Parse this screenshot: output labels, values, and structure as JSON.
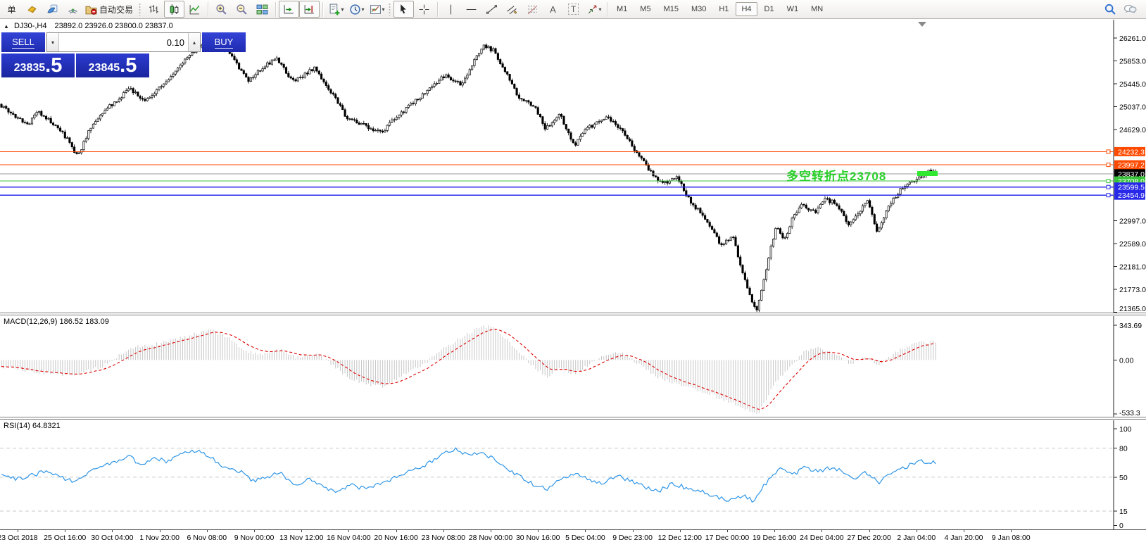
{
  "toolbar": {
    "new_order_label": "单",
    "autotrading_label": "自动交易",
    "letter_a": "A",
    "letter_t": "T",
    "timeframes": [
      "M1",
      "M5",
      "M15",
      "M30",
      "H1",
      "H4",
      "D1",
      "W1",
      "MN"
    ],
    "active_timeframe": "H4"
  },
  "icons": {
    "collapse": "▲",
    "spin_up": "▴",
    "spin_down": "▾",
    "caret": "▾"
  },
  "chart": {
    "header": {
      "symbol_period": "DJ30-,H4",
      "ohlc": "23892.0 23926.0 23800.0 23837.0"
    },
    "trade_panel": {
      "sell_label": "SELL",
      "buy_label": "BUY",
      "volume": "0.10",
      "sell_price": "23835",
      "sell_price_frac": ".5",
      "buy_price": "23845",
      "buy_price_frac": ".5"
    },
    "annotation": {
      "text": "多空转折点23708",
      "color": "#28cf28",
      "dash_color": "#30e830"
    },
    "levels": [
      {
        "price": 24232.3,
        "label": "24232.3",
        "color": "#ff4a00",
        "style": "solid"
      },
      {
        "price": 23997.2,
        "label": "23997.2",
        "color": "#ff4a00",
        "style": "solid"
      },
      {
        "price": 23837.0,
        "label": "23837.0",
        "color": "#000000",
        "style": "current"
      },
      {
        "price": 23708.0,
        "label": "23708.0",
        "color": "#38c438",
        "style": "solid"
      },
      {
        "price": 23599.5,
        "label": "23599.5",
        "color": "#2828e8",
        "style": "solid"
      },
      {
        "price": 23454.9,
        "label": "23454.9",
        "color": "#2828e8",
        "style": "solid"
      }
    ]
  },
  "macd": {
    "label": "MACD(12,26,9) 186.52 183.09",
    "tick_top": "343.69",
    "tick_zero": "0.00",
    "tick_bottom": "-533.3"
  },
  "rsi": {
    "label": "RSI(14) 64.8321",
    "ticks": [
      100,
      80,
      50,
      15,
      0
    ],
    "dashed_levels": [
      80,
      50,
      15
    ]
  },
  "chart_data": {
    "type": "candlestick",
    "symbol": "DJ30-",
    "timeframe": "H4",
    "title": "DJ30-,H4",
    "last_ohlc": {
      "open": 23892.0,
      "high": 23926.0,
      "low": 23800.0,
      "close": 23837.0
    },
    "ylim": [
      21330,
      26590
    ],
    "y_axis": {
      "visible_ticks": [
        26261.0,
        25853.0,
        25445.0,
        25037.0,
        24629.0,
        22997.0,
        22589.0,
        22181.0,
        21773.0,
        21365.0
      ],
      "tick_step": 408
    },
    "x_labels": [
      "23 Oct 2018",
      "25 Oct 16:00",
      "30 Oct 04:00",
      "1 Nov 20:00",
      "6 Nov 08:00",
      "9 Nov 00:00",
      "13 Nov 12:00",
      "16 Nov 04:00",
      "20 Nov 16:00",
      "23 Nov 08:00",
      "28 Nov 00:00",
      "30 Nov 16:00",
      "5 Dec 04:00",
      "9 Dec 23:00",
      "12 Dec 12:00",
      "17 Dec 00:00",
      "19 Dec 16:00",
      "24 Dec 04:00",
      "27 Dec 20:00",
      "2 Jan 04:00",
      "4 Jan 20:00",
      "9 Jan 08:00"
    ],
    "price_path": [
      [
        0,
        25080
      ],
      [
        0.015,
        24890
      ],
      [
        0.03,
        24700
      ],
      [
        0.042,
        24950
      ],
      [
        0.056,
        24760
      ],
      [
        0.071,
        24500
      ],
      [
        0.084,
        24130
      ],
      [
        0.097,
        24650
      ],
      [
        0.112,
        24950
      ],
      [
        0.139,
        25350
      ],
      [
        0.157,
        25130
      ],
      [
        0.187,
        25650
      ],
      [
        0.217,
        26180
      ],
      [
        0.232,
        26230
      ],
      [
        0.247,
        25980
      ],
      [
        0.266,
        25480
      ],
      [
        0.281,
        25740
      ],
      [
        0.296,
        25900
      ],
      [
        0.315,
        25470
      ],
      [
        0.337,
        25740
      ],
      [
        0.36,
        25150
      ],
      [
        0.371,
        24830
      ],
      [
        0.39,
        24700
      ],
      [
        0.408,
        24580
      ],
      [
        0.431,
        24950
      ],
      [
        0.453,
        25250
      ],
      [
        0.476,
        25600
      ],
      [
        0.494,
        25440
      ],
      [
        0.517,
        26130
      ],
      [
        0.528,
        26040
      ],
      [
        0.554,
        25230
      ],
      [
        0.573,
        25000
      ],
      [
        0.583,
        24640
      ],
      [
        0.599,
        24890
      ],
      [
        0.614,
        24340
      ],
      [
        0.628,
        24650
      ],
      [
        0.65,
        24840
      ],
      [
        0.663,
        24640
      ],
      [
        0.678,
        24290
      ],
      [
        0.693,
        23940
      ],
      [
        0.708,
        23640
      ],
      [
        0.723,
        23800
      ],
      [
        0.738,
        23340
      ],
      [
        0.749,
        23150
      ],
      [
        0.76,
        22840
      ],
      [
        0.772,
        22540
      ],
      [
        0.783,
        22760
      ],
      [
        0.794,
        22040
      ],
      [
        0.803,
        21580
      ],
      [
        0.809,
        21430
      ],
      [
        0.816,
        21900
      ],
      [
        0.824,
        22500
      ],
      [
        0.83,
        22890
      ],
      [
        0.838,
        22640
      ],
      [
        0.848,
        23090
      ],
      [
        0.858,
        23290
      ],
      [
        0.871,
        23140
      ],
      [
        0.882,
        23390
      ],
      [
        0.895,
        23290
      ],
      [
        0.906,
        22940
      ],
      [
        0.918,
        23140
      ],
      [
        0.927,
        23340
      ],
      [
        0.938,
        22790
      ],
      [
        0.95,
        23240
      ],
      [
        0.963,
        23590
      ],
      [
        0.974,
        23690
      ],
      [
        0.983,
        23790
      ],
      [
        0.993,
        23880
      ],
      [
        1,
        23837
      ]
    ],
    "indicators": [
      {
        "type": "MACD",
        "params": [
          12,
          26,
          9
        ],
        "last_values": [
          186.52,
          183.09
        ],
        "range": [
          -533.3,
          343.69
        ],
        "path": [
          [
            0,
            -60
          ],
          [
            0.04,
            -120
          ],
          [
            0.08,
            -150
          ],
          [
            0.11,
            -60
          ],
          [
            0.14,
            120
          ],
          [
            0.17,
            160
          ],
          [
            0.2,
            230
          ],
          [
            0.225,
            300
          ],
          [
            0.24,
            250
          ],
          [
            0.265,
            80
          ],
          [
            0.285,
            55
          ],
          [
            0.3,
            110
          ],
          [
            0.315,
            30
          ],
          [
            0.34,
            60
          ],
          [
            0.36,
            -80
          ],
          [
            0.375,
            -180
          ],
          [
            0.39,
            -230
          ],
          [
            0.41,
            -260
          ],
          [
            0.43,
            -160
          ],
          [
            0.455,
            -40
          ],
          [
            0.475,
            120
          ],
          [
            0.5,
            250
          ],
          [
            0.515,
            335
          ],
          [
            0.53,
            320
          ],
          [
            0.55,
            120
          ],
          [
            0.57,
            -60
          ],
          [
            0.585,
            -160
          ],
          [
            0.6,
            -80
          ],
          [
            0.615,
            -140
          ],
          [
            0.63,
            -40
          ],
          [
            0.65,
            60
          ],
          [
            0.665,
            80
          ],
          [
            0.68,
            -20
          ],
          [
            0.695,
            -120
          ],
          [
            0.71,
            -200
          ],
          [
            0.725,
            -230
          ],
          [
            0.74,
            -280
          ],
          [
            0.755,
            -320
          ],
          [
            0.77,
            -380
          ],
          [
            0.785,
            -430
          ],
          [
            0.8,
            -500
          ],
          [
            0.81,
            -533
          ],
          [
            0.82,
            -380
          ],
          [
            0.83,
            -200
          ],
          [
            0.845,
            -60
          ],
          [
            0.86,
            80
          ],
          [
            0.875,
            125
          ],
          [
            0.89,
            60
          ],
          [
            0.9,
            20
          ],
          [
            0.91,
            -40
          ],
          [
            0.925,
            30
          ],
          [
            0.94,
            -55
          ],
          [
            0.95,
            25
          ],
          [
            0.965,
            120
          ],
          [
            0.98,
            165
          ],
          [
            1,
            186
          ]
        ]
      },
      {
        "type": "RSI",
        "params": [
          14
        ],
        "last_value": 64.8321,
        "levels": [
          80,
          50,
          15
        ],
        "path": [
          [
            0,
            52
          ],
          [
            0.02,
            48
          ],
          [
            0.05,
            56
          ],
          [
            0.08,
            45
          ],
          [
            0.1,
            58
          ],
          [
            0.12,
            64
          ],
          [
            0.139,
            72
          ],
          [
            0.15,
            62
          ],
          [
            0.165,
            70
          ],
          [
            0.18,
            66
          ],
          [
            0.2,
            76
          ],
          [
            0.21,
            78
          ],
          [
            0.225,
            72
          ],
          [
            0.24,
            60
          ],
          [
            0.26,
            55
          ],
          [
            0.27,
            45
          ],
          [
            0.285,
            50
          ],
          [
            0.3,
            55
          ],
          [
            0.315,
            42
          ],
          [
            0.33,
            48
          ],
          [
            0.345,
            40
          ],
          [
            0.36,
            35
          ],
          [
            0.375,
            42
          ],
          [
            0.39,
            38
          ],
          [
            0.41,
            45
          ],
          [
            0.43,
            52
          ],
          [
            0.45,
            60
          ],
          [
            0.465,
            68
          ],
          [
            0.475,
            74
          ],
          [
            0.49,
            79
          ],
          [
            0.5,
            72
          ],
          [
            0.515,
            76
          ],
          [
            0.525,
            70
          ],
          [
            0.54,
            60
          ],
          [
            0.555,
            52
          ],
          [
            0.57,
            43
          ],
          [
            0.585,
            38
          ],
          [
            0.6,
            48
          ],
          [
            0.615,
            55
          ],
          [
            0.63,
            48
          ],
          [
            0.645,
            42
          ],
          [
            0.66,
            52
          ],
          [
            0.675,
            46
          ],
          [
            0.69,
            40
          ],
          [
            0.705,
            36
          ],
          [
            0.72,
            44
          ],
          [
            0.735,
            38
          ],
          [
            0.75,
            35
          ],
          [
            0.765,
            30
          ],
          [
            0.78,
            26
          ],
          [
            0.795,
            32
          ],
          [
            0.805,
            25
          ],
          [
            0.816,
            40
          ],
          [
            0.825,
            52
          ],
          [
            0.835,
            58
          ],
          [
            0.85,
            54
          ],
          [
            0.86,
            60
          ],
          [
            0.875,
            55
          ],
          [
            0.885,
            60
          ],
          [
            0.9,
            56
          ],
          [
            0.91,
            48
          ],
          [
            0.925,
            55
          ],
          [
            0.94,
            45
          ],
          [
            0.95,
            52
          ],
          [
            0.965,
            60
          ],
          [
            0.975,
            63
          ],
          [
            0.985,
            66
          ],
          [
            1,
            64.8
          ]
        ]
      }
    ],
    "horizontal_lines": [
      24232.3,
      23997.2,
      23837.0,
      23708.0,
      23599.5,
      23454.9
    ]
  }
}
